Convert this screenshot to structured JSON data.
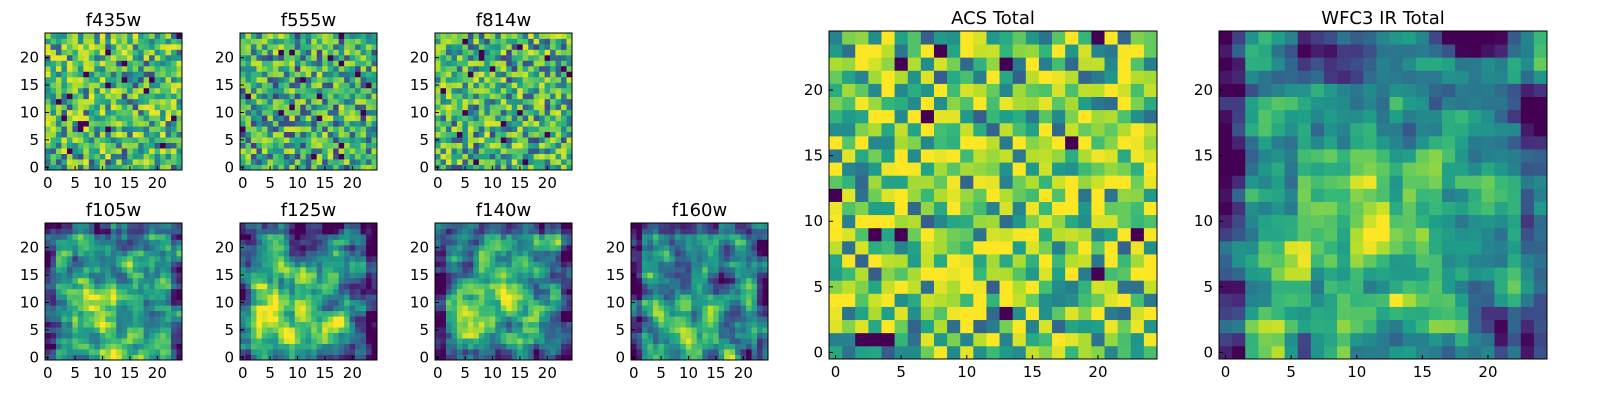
{
  "figure": {
    "panel_names": [
      "f435w",
      "f555w",
      "f814w",
      "f105w",
      "f125w",
      "f140w",
      "f160w",
      "ACS Total",
      "WFC3 IR Total"
    ]
  },
  "chart_data": [
    {
      "type": "heatmap",
      "title": "f435w",
      "grid": [
        25,
        25
      ],
      "x_ticks": [
        0,
        5,
        10,
        15,
        20
      ],
      "y_ticks": [
        0,
        5,
        10,
        15,
        20
      ],
      "xlim": [
        -0.5,
        24.5
      ],
      "ylim": [
        -0.5,
        24.5
      ],
      "colormap": "viridis",
      "texture": "noise",
      "bias": 0.62,
      "seed": 11
    },
    {
      "type": "heatmap",
      "title": "f555w",
      "grid": [
        25,
        25
      ],
      "x_ticks": [
        0,
        5,
        10,
        15,
        20
      ],
      "y_ticks": [
        0,
        5,
        10,
        15,
        20
      ],
      "xlim": [
        -0.5,
        24.5
      ],
      "ylim": [
        -0.5,
        24.5
      ],
      "colormap": "viridis",
      "texture": "noise",
      "bias": 0.58,
      "seed": 23
    },
    {
      "type": "heatmap",
      "title": "f814w",
      "grid": [
        25,
        25
      ],
      "x_ticks": [
        0,
        5,
        10,
        15,
        20
      ],
      "y_ticks": [
        0,
        5,
        10,
        15,
        20
      ],
      "xlim": [
        -0.5,
        24.5
      ],
      "ylim": [
        -0.5,
        24.5
      ],
      "colormap": "viridis",
      "texture": "noise",
      "bias": 0.6,
      "seed": 37
    },
    {
      "type": "heatmap",
      "title": "f105w",
      "grid": [
        25,
        25
      ],
      "x_ticks": [
        0,
        5,
        10,
        15,
        20
      ],
      "y_ticks": [
        0,
        5,
        10,
        15,
        20
      ],
      "xlim": [
        -0.5,
        24.5
      ],
      "ylim": [
        -0.5,
        24.5
      ],
      "colormap": "viridis",
      "texture": "smooth",
      "peak": [
        10,
        8
      ],
      "bias": 0.62,
      "seed": 41
    },
    {
      "type": "heatmap",
      "title": "f125w",
      "grid": [
        25,
        25
      ],
      "x_ticks": [
        0,
        5,
        10,
        15,
        20
      ],
      "y_ticks": [
        0,
        5,
        10,
        15,
        20
      ],
      "xlim": [
        -0.5,
        24.5
      ],
      "ylim": [
        -0.5,
        24.5
      ],
      "colormap": "viridis",
      "texture": "smooth",
      "peak": [
        9,
        6
      ],
      "bias": 0.62,
      "seed": 53
    },
    {
      "type": "heatmap",
      "title": "f140w",
      "grid": [
        25,
        25
      ],
      "x_ticks": [
        0,
        5,
        10,
        15,
        20
      ],
      "y_ticks": [
        0,
        5,
        10,
        15,
        20
      ],
      "xlim": [
        -0.5,
        24.5
      ],
      "ylim": [
        -0.5,
        24.5
      ],
      "colormap": "viridis",
      "texture": "smooth",
      "peak": [
        10,
        12
      ],
      "bias": 0.6,
      "seed": 67
    },
    {
      "type": "heatmap",
      "title": "f160w",
      "grid": [
        25,
        25
      ],
      "x_ticks": [
        0,
        5,
        10,
        15,
        20
      ],
      "y_ticks": [
        0,
        5,
        10,
        15,
        20
      ],
      "xlim": [
        -0.5,
        24.5
      ],
      "ylim": [
        -0.5,
        24.5
      ],
      "colormap": "viridis",
      "texture": "smooth",
      "peak": [
        9,
        4
      ],
      "bias": 0.58,
      "seed": 79
    },
    {
      "type": "heatmap",
      "title": "ACS Total",
      "grid": [
        25,
        25
      ],
      "x_ticks": [
        0,
        5,
        10,
        15,
        20
      ],
      "y_ticks": [
        0,
        5,
        10,
        15,
        20
      ],
      "xlim": [
        -0.5,
        24.5
      ],
      "ylim": [
        -0.5,
        24.5
      ],
      "colormap": "viridis",
      "texture": "noise",
      "bias": 0.7,
      "seed": 97
    },
    {
      "type": "heatmap",
      "title": "WFC3 IR Total",
      "grid": [
        25,
        25
      ],
      "x_ticks": [
        0,
        5,
        10,
        15,
        20
      ],
      "y_ticks": [
        0,
        5,
        10,
        15,
        20
      ],
      "xlim": [
        -0.5,
        24.5
      ],
      "ylim": [
        -0.5,
        24.5
      ],
      "colormap": "viridis",
      "texture": "smooth",
      "peak": [
        10,
        8
      ],
      "bias": 0.6,
      "seed": 113
    }
  ]
}
